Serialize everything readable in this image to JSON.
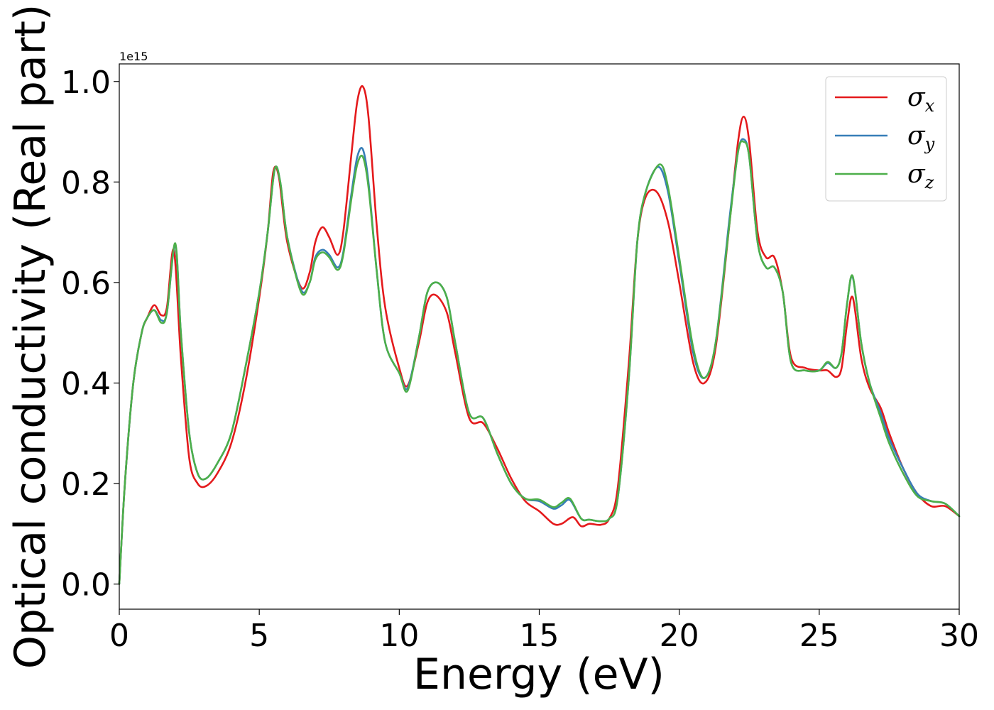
{
  "chart_data": {
    "type": "line",
    "xlabel": "Energy (eV)",
    "ylabel": "Optical conductivity (Real part)",
    "y_offset_label": "1e15",
    "xlim": [
      0,
      30
    ],
    "ylim": [
      -0.05,
      1.035
    ],
    "xticks": [
      0,
      5,
      10,
      15,
      20,
      25,
      30
    ],
    "xtick_labels": [
      "0",
      "5",
      "10",
      "15",
      "20",
      "25",
      "30"
    ],
    "yticks": [
      0.0,
      0.2,
      0.4,
      0.6,
      0.8,
      1.0
    ],
    "ytick_labels": [
      "0.0",
      "0.2",
      "0.4",
      "0.6",
      "0.8",
      "1.0"
    ],
    "grid": false,
    "legend_position": "top-right",
    "series": [
      {
        "name": "σx",
        "symbol": "σ",
        "subscript": "x",
        "color": "#e41a1c",
        "x": [
          0,
          0.2,
          0.5,
          0.8,
          1.0,
          1.25,
          1.5,
          1.7,
          1.95,
          2.2,
          2.5,
          2.8,
          3.1,
          3.5,
          4.0,
          4.5,
          5.0,
          5.3,
          5.5,
          5.7,
          6.0,
          6.5,
          6.8,
          7.0,
          7.25,
          7.5,
          7.8,
          8.0,
          8.3,
          8.5,
          8.7,
          8.9,
          9.2,
          9.5,
          10.0,
          10.3,
          10.7,
          11.0,
          11.3,
          11.7,
          12.0,
          12.5,
          13.0,
          13.5,
          14.0,
          14.5,
          15.0,
          15.5,
          15.8,
          16.2,
          16.5,
          16.8,
          17.2,
          17.5,
          17.8,
          18.2,
          18.5,
          18.8,
          19.2,
          19.6,
          20.0,
          20.5,
          20.9,
          21.3,
          21.8,
          22.1,
          22.3,
          22.5,
          22.8,
          23.1,
          23.4,
          23.7,
          24.0,
          24.5,
          25.0,
          25.3,
          25.6,
          25.8,
          26.0,
          26.2,
          26.5,
          26.8,
          27.2,
          27.5,
          28.0,
          28.5,
          29.0,
          29.5,
          30.0
        ],
        "y": [
          0.0,
          0.2,
          0.4,
          0.5,
          0.53,
          0.555,
          0.535,
          0.55,
          0.665,
          0.45,
          0.25,
          0.2,
          0.195,
          0.22,
          0.28,
          0.4,
          0.57,
          0.7,
          0.82,
          0.81,
          0.68,
          0.59,
          0.62,
          0.68,
          0.71,
          0.69,
          0.655,
          0.7,
          0.86,
          0.96,
          0.99,
          0.93,
          0.71,
          0.55,
          0.43,
          0.395,
          0.48,
          0.56,
          0.575,
          0.54,
          0.46,
          0.33,
          0.32,
          0.27,
          0.21,
          0.165,
          0.145,
          0.12,
          0.12,
          0.133,
          0.115,
          0.12,
          0.118,
          0.13,
          0.19,
          0.44,
          0.68,
          0.77,
          0.78,
          0.72,
          0.6,
          0.44,
          0.4,
          0.47,
          0.72,
          0.88,
          0.93,
          0.88,
          0.7,
          0.65,
          0.65,
          0.58,
          0.45,
          0.43,
          0.425,
          0.425,
          0.412,
          0.43,
          0.52,
          0.57,
          0.45,
          0.39,
          0.35,
          0.3,
          0.23,
          0.18,
          0.155,
          0.155,
          0.135
        ]
      },
      {
        "name": "σy",
        "symbol": "σ",
        "subscript": "y",
        "color": "#377eb8",
        "x": [
          0,
          0.2,
          0.5,
          0.8,
          1.0,
          1.25,
          1.5,
          1.7,
          2.0,
          2.2,
          2.5,
          2.8,
          3.1,
          3.5,
          4.0,
          4.5,
          5.0,
          5.3,
          5.55,
          5.75,
          6.0,
          6.5,
          6.8,
          7.0,
          7.25,
          7.5,
          7.8,
          8.0,
          8.3,
          8.5,
          8.7,
          8.9,
          9.2,
          9.5,
          10.0,
          10.3,
          10.7,
          11.0,
          11.35,
          11.7,
          12.0,
          12.5,
          13.0,
          13.5,
          14.0,
          14.5,
          15.0,
          15.5,
          15.8,
          16.1,
          16.5,
          16.8,
          17.2,
          17.5,
          17.8,
          18.2,
          18.5,
          18.8,
          19.25,
          19.6,
          20.0,
          20.5,
          20.9,
          21.3,
          21.8,
          22.1,
          22.3,
          22.5,
          22.8,
          23.1,
          23.4,
          23.7,
          24.0,
          24.5,
          25.0,
          25.3,
          25.6,
          25.8,
          26.0,
          26.2,
          26.5,
          26.8,
          27.2,
          27.5,
          28.0,
          28.5,
          29.0,
          29.5,
          30.0
        ],
        "y": [
          0.0,
          0.2,
          0.4,
          0.5,
          0.53,
          0.545,
          0.525,
          0.54,
          0.675,
          0.5,
          0.3,
          0.22,
          0.21,
          0.24,
          0.3,
          0.43,
          0.58,
          0.7,
          0.825,
          0.8,
          0.69,
          0.585,
          0.6,
          0.65,
          0.665,
          0.655,
          0.63,
          0.66,
          0.78,
          0.85,
          0.865,
          0.8,
          0.62,
          0.48,
          0.42,
          0.39,
          0.49,
          0.58,
          0.6,
          0.57,
          0.48,
          0.34,
          0.33,
          0.26,
          0.2,
          0.17,
          0.165,
          0.15,
          0.157,
          0.167,
          0.13,
          0.128,
          0.125,
          0.13,
          0.17,
          0.41,
          0.68,
          0.78,
          0.83,
          0.78,
          0.64,
          0.46,
          0.41,
          0.48,
          0.73,
          0.86,
          0.885,
          0.85,
          0.68,
          0.63,
          0.63,
          0.58,
          0.44,
          0.425,
          0.425,
          0.44,
          0.43,
          0.46,
          0.56,
          0.61,
          0.48,
          0.4,
          0.34,
          0.29,
          0.23,
          0.18,
          0.165,
          0.16,
          0.135
        ]
      },
      {
        "name": "σz",
        "symbol": "σ",
        "subscript": "z",
        "color": "#4daf4a",
        "x": [
          0,
          0.2,
          0.5,
          0.8,
          1.0,
          1.25,
          1.5,
          1.7,
          2.0,
          2.2,
          2.5,
          2.8,
          3.1,
          3.5,
          4.0,
          4.5,
          5.0,
          5.3,
          5.55,
          5.75,
          6.0,
          6.5,
          6.8,
          7.0,
          7.25,
          7.5,
          7.8,
          8.0,
          8.3,
          8.5,
          8.7,
          8.9,
          9.2,
          9.5,
          10.0,
          10.3,
          10.7,
          11.0,
          11.35,
          11.7,
          12.0,
          12.5,
          13.0,
          13.5,
          14.0,
          14.5,
          15.0,
          15.5,
          15.8,
          16.1,
          16.5,
          16.8,
          17.2,
          17.5,
          17.8,
          18.2,
          18.5,
          18.8,
          19.3,
          19.6,
          20.0,
          20.5,
          20.9,
          21.3,
          21.8,
          22.1,
          22.3,
          22.5,
          22.8,
          23.1,
          23.4,
          23.7,
          24.0,
          24.5,
          25.0,
          25.3,
          25.6,
          25.8,
          26.0,
          26.2,
          26.5,
          26.8,
          27.2,
          27.5,
          28.0,
          28.5,
          29.0,
          29.5,
          30.0
        ],
        "y": [
          0.0,
          0.2,
          0.4,
          0.5,
          0.53,
          0.545,
          0.52,
          0.54,
          0.678,
          0.5,
          0.3,
          0.22,
          0.21,
          0.24,
          0.3,
          0.43,
          0.58,
          0.7,
          0.825,
          0.8,
          0.69,
          0.58,
          0.6,
          0.645,
          0.66,
          0.65,
          0.625,
          0.655,
          0.77,
          0.835,
          0.85,
          0.79,
          0.62,
          0.48,
          0.42,
          0.385,
          0.49,
          0.58,
          0.6,
          0.57,
          0.48,
          0.34,
          0.33,
          0.26,
          0.2,
          0.17,
          0.168,
          0.153,
          0.162,
          0.17,
          0.13,
          0.128,
          0.125,
          0.13,
          0.17,
          0.41,
          0.68,
          0.78,
          0.835,
          0.79,
          0.65,
          0.47,
          0.41,
          0.48,
          0.72,
          0.86,
          0.88,
          0.85,
          0.68,
          0.63,
          0.63,
          0.58,
          0.44,
          0.425,
          0.425,
          0.442,
          0.43,
          0.46,
          0.56,
          0.612,
          0.48,
          0.4,
          0.33,
          0.28,
          0.22,
          0.175,
          0.165,
          0.16,
          0.135
        ]
      }
    ]
  }
}
